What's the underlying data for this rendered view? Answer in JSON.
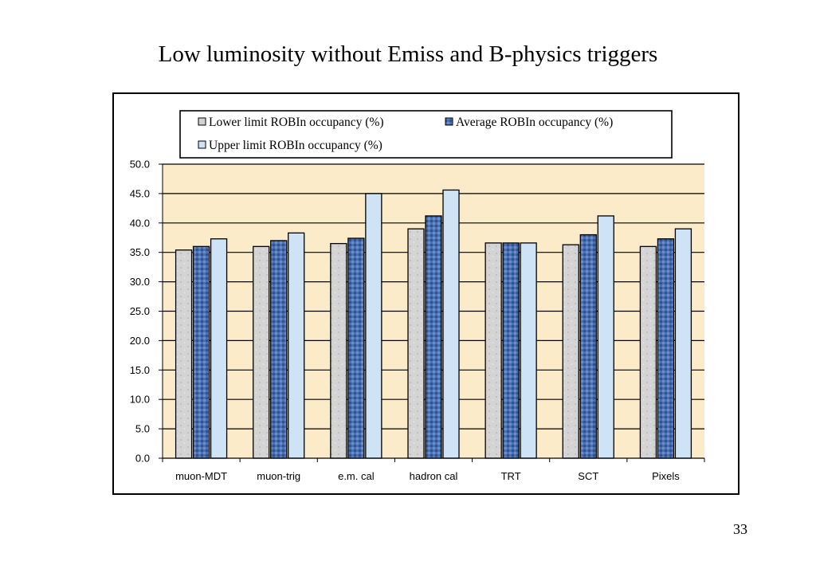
{
  "slide": {
    "title": "Low luminosity without Emiss and B-physics triggers",
    "page_number": "33"
  },
  "colors": {
    "plot_background": "#fbebc9",
    "lower": "#d2d2d2",
    "average": "#3f66a8",
    "upper": "#cfe3f7",
    "outline": "#000000"
  },
  "chart_data": {
    "type": "bar",
    "title": "",
    "xlabel": "",
    "ylabel": "",
    "categories": [
      "muon-MDT",
      "muon-trig",
      "e.m. cal",
      "hadron cal",
      "TRT",
      "SCT",
      "Pixels"
    ],
    "series": [
      {
        "name": "Lower limit ROBIn occupancy (%)",
        "values": [
          35.4,
          36.0,
          36.5,
          39.0,
          36.6,
          36.3,
          36.0
        ]
      },
      {
        "name": "Average ROBIn occupancy (%)",
        "values": [
          36.0,
          37.0,
          37.4,
          41.2,
          36.6,
          38.0,
          37.3
        ]
      },
      {
        "name": "Upper limit ROBIn occupancy (%)",
        "values": [
          37.3,
          38.3,
          45.0,
          45.6,
          36.6,
          41.2,
          39.0
        ]
      }
    ],
    "ylim": [
      0,
      50
    ],
    "y_ticks": [
      "0.0",
      "5.0",
      "10.0",
      "15.0",
      "20.0",
      "25.0",
      "30.0",
      "35.0",
      "40.0",
      "45.0",
      "50.0"
    ],
    "grid": true,
    "legend_position": "top"
  }
}
